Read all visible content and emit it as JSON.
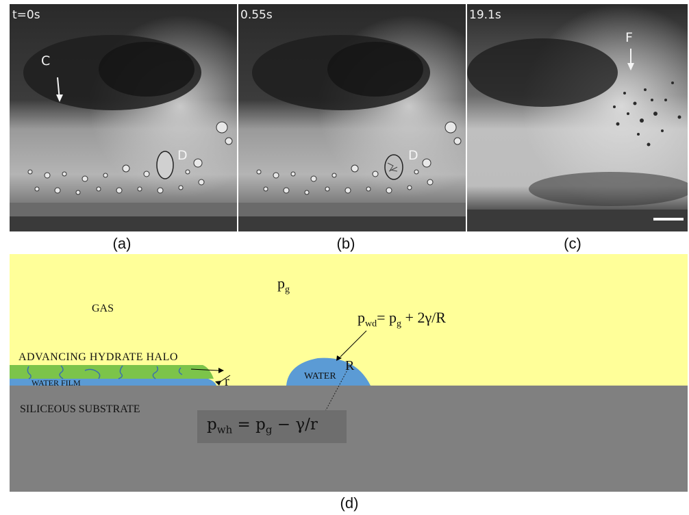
{
  "photos": {
    "a": {
      "time": "t=0s",
      "label": "(a)",
      "markers": {
        "c": "C",
        "d": "D"
      }
    },
    "b": {
      "time": "0.55s",
      "label": "(b)",
      "markers": {
        "d": "D"
      }
    },
    "c": {
      "time": "19.1s",
      "label": "(c)",
      "markers": {
        "f": "F"
      }
    }
  },
  "schematic": {
    "label": "(d)",
    "gas": "GAS",
    "pg_base": "p",
    "pg_sub": "g",
    "halo": "ADVANCING HYDRATE HALO",
    "film": "WATER FILM",
    "substrate": "SILICEOUS SUBSTRATE",
    "droplet": "WATER",
    "radius_drop": "R",
    "radius_film": "r",
    "pwd": {
      "base": "p",
      "sub": "wd",
      "eq": "= p",
      "eq_sub": "g",
      "tail": " + 2γ/R"
    },
    "pwh": {
      "base": "p",
      "sub": "wh",
      "eq": " = p",
      "eq_sub": "g",
      "tail": " − γ/r"
    }
  },
  "colors": {
    "gas": "#ffff99",
    "substrate": "#808080",
    "hydrate": "#7cc44a",
    "water": "#5b9bd5",
    "hydrate_cracks": "#3a6fb0",
    "equation_box": "#6e6e6e"
  }
}
